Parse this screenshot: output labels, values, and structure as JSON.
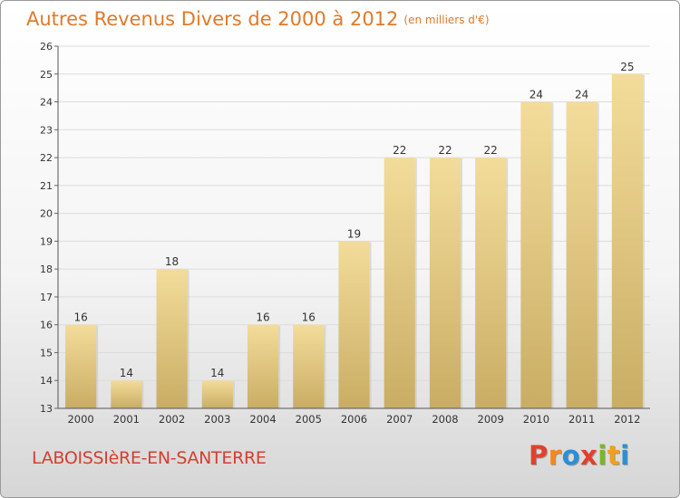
{
  "header": {
    "title": "Autres Revenus Divers de 2000 à 2012",
    "subtitle": "(en milliers d'€)"
  },
  "footer": {
    "commune": "LABOISSIèRE-EN-SANTERRE",
    "logo_text": "Proxiti",
    "logo_letters": [
      {
        "char": "P",
        "color": "#e2402c"
      },
      {
        "char": "r",
        "color": "#f08a1c"
      },
      {
        "char": "o",
        "color": "#2a8fd6"
      },
      {
        "char": "x",
        "color": "#e2402c"
      },
      {
        "char": "i",
        "color": "#7ab629"
      },
      {
        "char": "t",
        "color": "#f0a01c"
      },
      {
        "char": "i",
        "color": "#2a8fd6"
      }
    ]
  },
  "chart_data": {
    "type": "bar",
    "title": "Autres Revenus Divers de 2000 à 2012",
    "subtitle": "(en milliers d'€)",
    "categories": [
      "2000",
      "2001",
      "2002",
      "2003",
      "2004",
      "2005",
      "2006",
      "2007",
      "2008",
      "2009",
      "2010",
      "2011",
      "2012"
    ],
    "values": [
      16,
      14,
      18,
      14,
      16,
      16,
      19,
      22,
      22,
      22,
      24,
      24,
      25
    ],
    "ylim": [
      13,
      26
    ],
    "yticks": [
      13,
      14,
      15,
      16,
      17,
      18,
      19,
      20,
      21,
      22,
      23,
      24,
      25,
      26
    ],
    "grid": true,
    "bar_color_top": "#f3dc9a",
    "bar_color_bottom": "#c9ad64",
    "data_labels": true
  }
}
